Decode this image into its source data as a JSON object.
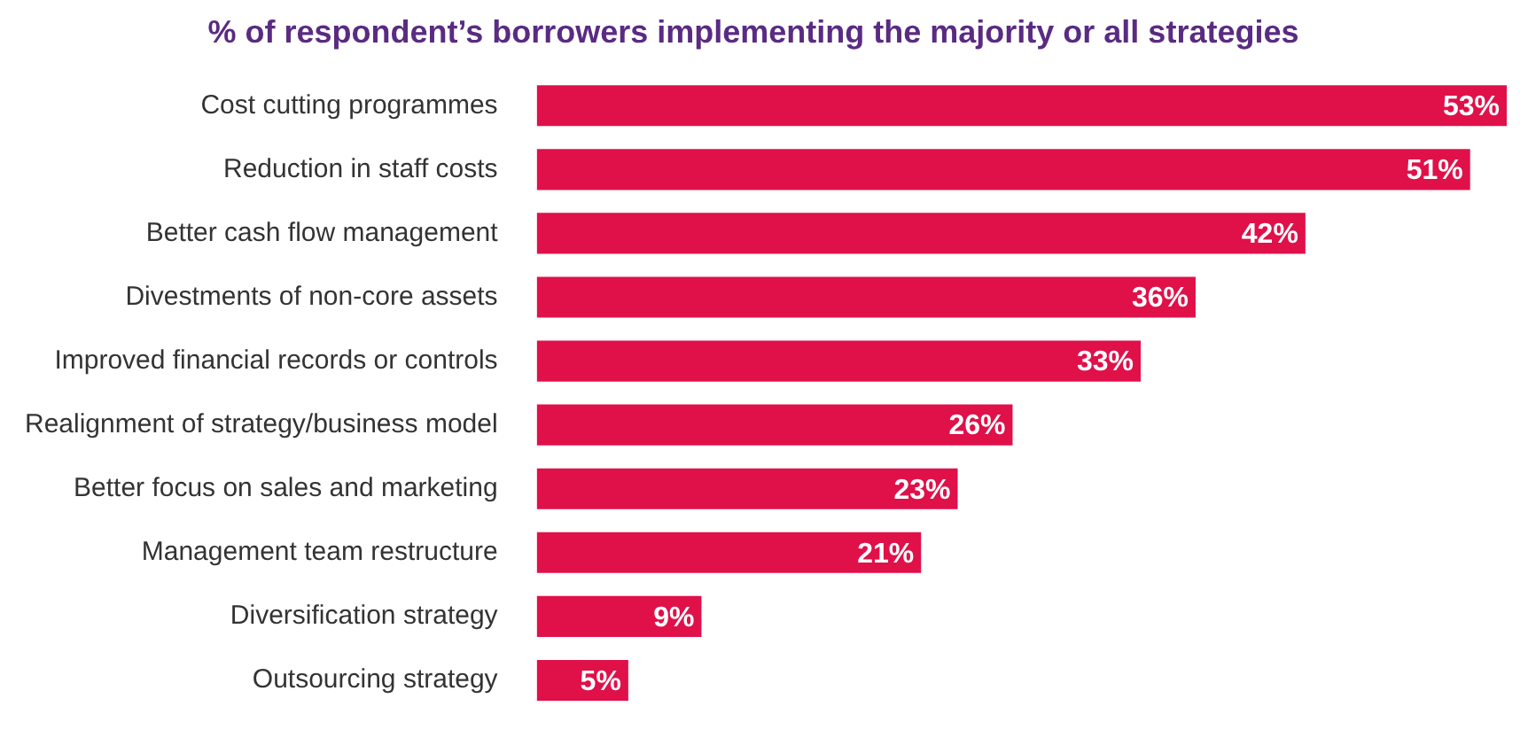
{
  "chart_data": {
    "type": "bar",
    "orientation": "horizontal",
    "title": "% of respondent’s borrowers implementing the majority or all strategies",
    "categories": [
      "Cost cutting programmes",
      "Reduction in staff costs",
      "Better cash flow management",
      "Divestments of non-core assets",
      "Improved financial records or controls",
      "Realignment of strategy/business model",
      "Better focus on sales and marketing",
      "Management team restructure",
      "Diversification strategy",
      "Outsourcing strategy"
    ],
    "values": [
      53,
      51,
      42,
      36,
      33,
      26,
      23,
      21,
      9,
      5
    ],
    "value_labels": [
      "53%",
      "51%",
      "42%",
      "36%",
      "33%",
      "26%",
      "23%",
      "21%",
      "9%",
      "5%"
    ],
    "color": "#e01049",
    "legend": false
  }
}
